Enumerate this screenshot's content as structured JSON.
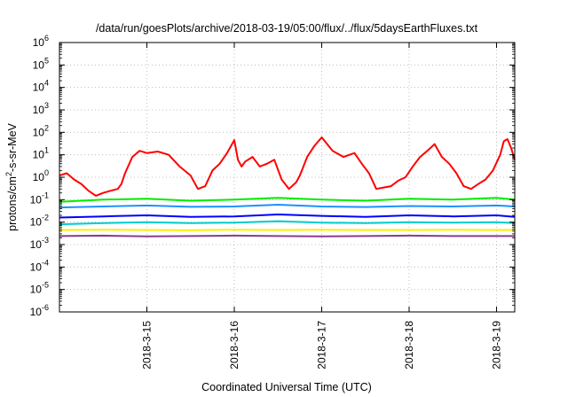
{
  "chart_data": {
    "type": "line",
    "title": "/data/run/goesPlots/archive/2018-03-19/05:00/flux/../flux/5daysEarthFluxes.txt",
    "xlabel": "Coordinated Universal Time (UTC)",
    "ylabel": {
      "prefix": "protons/cm",
      "superscript": "2",
      "suffix": "-s-sr-MeV"
    },
    "y_scale": "log",
    "ylim": [
      1e-06,
      1000000.0
    ],
    "y_ticks": [
      {
        "value": 1000000.0,
        "base": "10",
        "exp": "6"
      },
      {
        "value": 100000.0,
        "base": "10",
        "exp": "5"
      },
      {
        "value": 10000.0,
        "base": "10",
        "exp": "4"
      },
      {
        "value": 1000.0,
        "base": "10",
        "exp": "3"
      },
      {
        "value": 100.0,
        "base": "10",
        "exp": "2"
      },
      {
        "value": 10.0,
        "base": "10",
        "exp": "1"
      },
      {
        "value": 1.0,
        "base": "10",
        "exp": "0"
      },
      {
        "value": 0.1,
        "base": "10",
        "exp": "-1"
      },
      {
        "value": 0.01,
        "base": "10",
        "exp": "-2"
      },
      {
        "value": 0.001,
        "base": "10",
        "exp": "-3"
      },
      {
        "value": 0.0001,
        "base": "10",
        "exp": "-4"
      },
      {
        "value": 1e-05,
        "base": "10",
        "exp": "-5"
      },
      {
        "value": 1e-06,
        "base": "10",
        "exp": "-6"
      }
    ],
    "xlim": [
      "2018-03-14 00:00",
      "2018-03-19 05:00"
    ],
    "x_ticks": [
      "2018-3-15",
      "2018-3-16",
      "2018-3-17",
      "2018-3-18",
      "2018-3-19"
    ],
    "grid": true,
    "series": [
      {
        "color": "#ff0000",
        "x": [
          "2018-03-14 00:00",
          "2018-03-14 02:00",
          "2018-03-14 04:00",
          "2018-03-14 06:00",
          "2018-03-14 08:00",
          "2018-03-14 10:00",
          "2018-03-14 12:00",
          "2018-03-14 14:00",
          "2018-03-14 16:00",
          "2018-03-14 17:00",
          "2018-03-14 18:00",
          "2018-03-14 20:00",
          "2018-03-14 22:00",
          "2018-03-15 00:00",
          "2018-03-15 03:00",
          "2018-03-15 06:00",
          "2018-03-15 09:00",
          "2018-03-15 12:00",
          "2018-03-15 14:00",
          "2018-03-15 16:00",
          "2018-03-15 18:00",
          "2018-03-15 20:00",
          "2018-03-15 22:00",
          "2018-03-16 00:00",
          "2018-03-16 01:00",
          "2018-03-16 02:00",
          "2018-03-16 03:00",
          "2018-03-16 05:00",
          "2018-03-16 07:00",
          "2018-03-16 09:00",
          "2018-03-16 11:00",
          "2018-03-16 13:00",
          "2018-03-16 15:00",
          "2018-03-16 17:00",
          "2018-03-16 18:00",
          "2018-03-16 20:00",
          "2018-03-16 22:00",
          "2018-03-17 00:00",
          "2018-03-17 03:00",
          "2018-03-17 06:00",
          "2018-03-17 09:00",
          "2018-03-17 11:00",
          "2018-03-17 13:00",
          "2018-03-17 15:00",
          "2018-03-17 17:00",
          "2018-03-17 19:00",
          "2018-03-17 21:00",
          "2018-03-17 23:00",
          "2018-03-18 01:00",
          "2018-03-18 03:00",
          "2018-03-18 05:00",
          "2018-03-18 07:00",
          "2018-03-18 09:00",
          "2018-03-18 11:00",
          "2018-03-18 13:00",
          "2018-03-18 15:00",
          "2018-03-18 17:00",
          "2018-03-18 19:00",
          "2018-03-18 21:00",
          "2018-03-18 23:00",
          "2018-03-19 01:00",
          "2018-03-19 02:00",
          "2018-03-19 03:00",
          "2018-03-19 04:00",
          "2018-03-19 05:00"
        ],
        "values": [
          1.2,
          1.5,
          0.8,
          0.5,
          0.25,
          0.15,
          0.2,
          0.25,
          0.3,
          0.5,
          1.5,
          8,
          15,
          12,
          14,
          10,
          3,
          1.2,
          0.3,
          0.4,
          2,
          4,
          12,
          45,
          6,
          3,
          5,
          8,
          3,
          4,
          6,
          0.8,
          0.3,
          0.6,
          1.2,
          8,
          25,
          60,
          15,
          8,
          12,
          4,
          1.5,
          0.3,
          0.35,
          0.4,
          0.7,
          1.0,
          3,
          8,
          15,
          30,
          8,
          4,
          1.5,
          0.4,
          0.3,
          0.5,
          0.8,
          2,
          10,
          40,
          50,
          20,
          6
        ]
      },
      {
        "color": "#00ee00",
        "x": [
          "2018-03-14 00:00",
          "2018-03-14 12:00",
          "2018-03-15 00:00",
          "2018-03-15 12:00",
          "2018-03-16 00:00",
          "2018-03-16 12:00",
          "2018-03-17 00:00",
          "2018-03-17 12:00",
          "2018-03-18 00:00",
          "2018-03-18 12:00",
          "2018-03-19 00:00",
          "2018-03-19 05:00"
        ],
        "values": [
          0.08,
          0.1,
          0.11,
          0.09,
          0.1,
          0.12,
          0.1,
          0.09,
          0.11,
          0.1,
          0.12,
          0.1
        ]
      },
      {
        "color": "#1e90ff",
        "x": [
          "2018-03-14 00:00",
          "2018-03-14 12:00",
          "2018-03-15 00:00",
          "2018-03-15 12:00",
          "2018-03-16 00:00",
          "2018-03-16 12:00",
          "2018-03-17 00:00",
          "2018-03-17 12:00",
          "2018-03-18 00:00",
          "2018-03-18 12:00",
          "2018-03-19 00:00",
          "2018-03-19 05:00"
        ],
        "values": [
          0.045,
          0.05,
          0.055,
          0.048,
          0.05,
          0.06,
          0.05,
          0.047,
          0.052,
          0.05,
          0.055,
          0.05
        ]
      },
      {
        "color": "#0000ff",
        "x": [
          "2018-03-14 00:00",
          "2018-03-14 12:00",
          "2018-03-15 00:00",
          "2018-03-15 12:00",
          "2018-03-16 00:00",
          "2018-03-16 12:00",
          "2018-03-17 00:00",
          "2018-03-17 12:00",
          "2018-03-18 00:00",
          "2018-03-18 12:00",
          "2018-03-19 00:00",
          "2018-03-19 05:00"
        ],
        "values": [
          0.016,
          0.018,
          0.02,
          0.017,
          0.018,
          0.022,
          0.019,
          0.017,
          0.02,
          0.018,
          0.02,
          0.017
        ]
      },
      {
        "color": "#00cccc",
        "x": [
          "2018-03-14 00:00",
          "2018-03-14 12:00",
          "2018-03-15 00:00",
          "2018-03-15 12:00",
          "2018-03-16 00:00",
          "2018-03-16 12:00",
          "2018-03-17 00:00",
          "2018-03-17 12:00",
          "2018-03-18 00:00",
          "2018-03-18 12:00",
          "2018-03-19 00:00",
          "2018-03-19 05:00"
        ],
        "values": [
          0.008,
          0.009,
          0.01,
          0.009,
          0.0095,
          0.011,
          0.0095,
          0.009,
          0.01,
          0.0095,
          0.01,
          0.009
        ]
      },
      {
        "color": "#ffee00",
        "x": [
          "2018-03-14 00:00",
          "2018-03-14 12:00",
          "2018-03-15 00:00",
          "2018-03-15 12:00",
          "2018-03-16 00:00",
          "2018-03-16 12:00",
          "2018-03-17 00:00",
          "2018-03-17 12:00",
          "2018-03-18 00:00",
          "2018-03-18 12:00",
          "2018-03-19 00:00",
          "2018-03-19 05:00"
        ],
        "values": [
          0.0045,
          0.0046,
          0.0045,
          0.0044,
          0.0046,
          0.0045,
          0.0046,
          0.0045,
          0.0045,
          0.0046,
          0.0045,
          0.0045
        ]
      },
      {
        "color": "#8b3a8b",
        "x": [
          "2018-03-14 00:00",
          "2018-03-14 12:00",
          "2018-03-15 00:00",
          "2018-03-15 12:00",
          "2018-03-16 00:00",
          "2018-03-16 12:00",
          "2018-03-17 00:00",
          "2018-03-17 12:00",
          "2018-03-18 00:00",
          "2018-03-18 12:00",
          "2018-03-19 00:00",
          "2018-03-19 05:00"
        ],
        "values": [
          0.0024,
          0.0025,
          0.0023,
          0.0024,
          0.0025,
          0.0024,
          0.0023,
          0.0024,
          0.0025,
          0.0024,
          0.0024,
          0.0024
        ]
      }
    ]
  }
}
